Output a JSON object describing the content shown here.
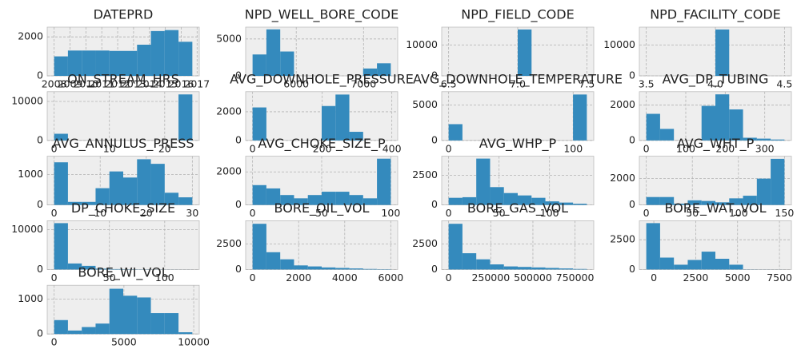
{
  "chart_data": [
    {
      "type": "histogram",
      "title": "DATEPRD",
      "bins": [
        2008,
        2008.87,
        2009.74,
        2010.61,
        2011.48,
        2012.35,
        2013.22,
        2014.09,
        2014.96,
        2015.83,
        2016.7
      ],
      "values": [
        1000,
        1300,
        1300,
        1300,
        1280,
        1280,
        1600,
        2300,
        2350,
        1750
      ],
      "xlim": [
        2007.565,
        2017.135
      ],
      "xticks": [
        2008,
        2009,
        2010,
        2011,
        2012,
        2013,
        2014,
        2015,
        2016,
        2017
      ],
      "ylim": [
        0,
        2500
      ],
      "yticks": [
        0,
        2000
      ],
      "color": "#348ABD",
      "grid": true
    },
    {
      "type": "histogram",
      "title": "NPD_WELL_BORE_CODE",
      "bins": [
        5351,
        5556.4,
        5761.8,
        5967.2,
        6172.6,
        6378,
        6583.4,
        6788.8,
        6994.2,
        7199.6,
        7405
      ],
      "values": [
        2900,
        6300,
        3300,
        0,
        0,
        0,
        0,
        0,
        1000,
        1700
      ],
      "xlim": [
        5248.3,
        7507.7
      ],
      "xticks": [
        6000,
        7000
      ],
      "ylim": [
        0,
        6600
      ],
      "yticks": [
        0,
        5000
      ],
      "color": "#348ABD",
      "grid": true
    },
    {
      "type": "histogram",
      "title": "NPD_FIELD_CODE",
      "bins": [
        6.5,
        6.6,
        6.7,
        6.8,
        6.9,
        7.0,
        7.1,
        7.2,
        7.3,
        7.4,
        7.5
      ],
      "values": [
        0,
        0,
        0,
        0,
        0,
        15000,
        0,
        0,
        0,
        0
      ],
      "xlim": [
        6.45,
        7.55
      ],
      "xticks": [
        6.5,
        {
          "value": 7,
          "label": "7.0"
        },
        7.5
      ],
      "ylim": [
        0,
        15750
      ],
      "yticks": [
        0,
        10000
      ],
      "color": "#348ABD",
      "grid": true
    },
    {
      "type": "histogram",
      "title": "NPD_FACILITY_CODE",
      "bins": [
        3.5,
        3.6,
        3.7,
        3.8,
        3.9,
        4.0,
        4.1,
        4.2,
        4.3,
        4.4,
        4.5
      ],
      "values": [
        0,
        0,
        0,
        0,
        0,
        15000,
        0,
        0,
        0,
        0
      ],
      "xlim": [
        3.45,
        4.55
      ],
      "xticks": [
        3.5,
        {
          "value": 4,
          "label": "4.0"
        },
        4.5
      ],
      "ylim": [
        0,
        15750
      ],
      "yticks": [
        0,
        10000
      ],
      "color": "#348ABD",
      "grid": true
    },
    {
      "type": "histogram",
      "title": "ON_STREAM_HRS",
      "bins": [
        0,
        2.5,
        5,
        7.5,
        10,
        12.5,
        15,
        17.5,
        20,
        22.5,
        25
      ],
      "values": [
        1700,
        0,
        0,
        0,
        0,
        0,
        0,
        0,
        0,
        11800
      ],
      "xlim": [
        -1.25,
        26.25
      ],
      "xticks": [
        0,
        10,
        20
      ],
      "ylim": [
        0,
        12500
      ],
      "yticks": [
        0,
        10000
      ],
      "color": "#348ABD",
      "grid": true
    },
    {
      "type": "histogram",
      "title": "AVG_DOWNHOLE_PRESSURE",
      "bins": [
        0,
        39.7,
        79.4,
        119.1,
        158.8,
        198.5,
        238.2,
        277.9,
        317.6,
        357.3,
        397
      ],
      "values": [
        2300,
        0,
        0,
        0,
        0,
        2400,
        3200,
        600,
        0,
        0
      ],
      "xlim": [
        -19.85,
        416.85
      ],
      "xticks": [
        0,
        200,
        400
      ],
      "ylim": [
        0,
        3400
      ],
      "yticks": [
        0,
        2000
      ],
      "color": "#348ABD",
      "grid": true
    },
    {
      "type": "histogram",
      "title": "AVG_DOWNHOLE_TEMPERATURE",
      "bins": [
        0,
        11.1,
        22.2,
        33.3,
        44.4,
        55.5,
        66.6,
        77.7,
        88.8,
        99.9,
        111
      ],
      "values": [
        2300,
        0,
        0,
        0,
        0,
        0,
        0,
        0,
        0,
        6500
      ],
      "xlim": [
        -5.55,
        116.55
      ],
      "xticks": [
        0,
        100
      ],
      "ylim": [
        0,
        6900
      ],
      "yticks": [
        0,
        5000
      ],
      "color": "#348ABD",
      "grid": true
    },
    {
      "type": "histogram",
      "title": "AVG_DP_TUBING",
      "bins": [
        0,
        35,
        70,
        105,
        140,
        175,
        210,
        245,
        280,
        315,
        350
      ],
      "values": [
        1500,
        650,
        0,
        0,
        1950,
        2600,
        1750,
        150,
        100,
        50
      ],
      "xlim": [
        -17.5,
        367.5
      ],
      "xticks": [
        0,
        100,
        200,
        300
      ],
      "ylim": [
        0,
        2750
      ],
      "yticks": [
        0,
        2000
      ],
      "color": "#348ABD",
      "grid": true
    },
    {
      "type": "histogram",
      "title": "AVG_ANNULUS_PRESS",
      "bins": [
        0,
        3,
        6,
        9,
        12,
        15,
        18,
        21,
        24,
        27,
        30
      ],
      "values": [
        1400,
        100,
        100,
        550,
        1100,
        900,
        1500,
        1350,
        400,
        250
      ],
      "xlim": [
        -1.5,
        31.5
      ],
      "xticks": [
        0,
        10,
        20,
        30
      ],
      "ylim": [
        0,
        1600
      ],
      "yticks": [
        0,
        1000
      ],
      "color": "#348ABD",
      "grid": true
    },
    {
      "type": "histogram",
      "title": "AVG_CHOKE_SIZE_P",
      "bins": [
        0,
        10,
        20,
        30,
        40,
        50,
        60,
        70,
        80,
        90,
        100
      ],
      "values": [
        1200,
        1000,
        600,
        400,
        600,
        800,
        800,
        600,
        400,
        2800
      ],
      "xlim": [
        -5,
        105
      ],
      "xticks": [
        0,
        50,
        100
      ],
      "ylim": [
        0,
        2950
      ],
      "yticks": [
        0,
        2000
      ],
      "color": "#348ABD",
      "grid": true
    },
    {
      "type": "histogram",
      "title": "AVG_WHP_P",
      "bins": [
        0,
        13.7,
        27.4,
        41.1,
        54.8,
        68.5,
        82.2,
        95.9,
        109.6,
        123.3,
        137
      ],
      "values": [
        600,
        650,
        3900,
        1500,
        1000,
        800,
        600,
        300,
        200,
        100
      ],
      "xlim": [
        -6.85,
        143.85
      ],
      "xticks": [
        0,
        50,
        100
      ],
      "ylim": [
        0,
        4100
      ],
      "yticks": [
        0,
        2500
      ],
      "color": "#348ABD",
      "grid": true
    },
    {
      "type": "histogram",
      "title": "AVG_WHT_P",
      "bins": [
        0,
        15,
        30,
        45,
        60,
        75,
        90,
        105,
        120,
        135,
        150
      ],
      "values": [
        600,
        600,
        100,
        350,
        300,
        200,
        500,
        700,
        2000,
        3500
      ],
      "xlim": [
        -7.5,
        157.5
      ],
      "xticks": [
        0,
        50,
        100,
        150
      ],
      "ylim": [
        0,
        3700
      ],
      "yticks": [
        0,
        2000
      ],
      "color": "#348ABD",
      "grid": true
    },
    {
      "type": "histogram",
      "title": "DP_CHOKE_SIZE",
      "bins": [
        0,
        12.5,
        25,
        37.5,
        50,
        62.5,
        75,
        87.5,
        100,
        112.5,
        125
      ],
      "values": [
        11600,
        1500,
        900,
        200,
        100,
        50,
        30,
        20,
        10,
        5
      ],
      "xlim": [
        -6.25,
        131.25
      ],
      "xticks": [
        0,
        50,
        100
      ],
      "ylim": [
        0,
        12200
      ],
      "yticks": [
        0,
        10000
      ],
      "color": "#348ABD",
      "grid": true
    },
    {
      "type": "histogram",
      "title": "BORE_OIL_VOL",
      "bins": [
        0,
        600,
        1200,
        1800,
        2400,
        3000,
        3600,
        4200,
        4800,
        5400,
        6000
      ],
      "values": [
        4500,
        1700,
        1000,
        400,
        300,
        200,
        150,
        100,
        50,
        30
      ],
      "xlim": [
        -300,
        6300
      ],
      "xticks": [
        0,
        2000,
        4000,
        6000
      ],
      "ylim": [
        0,
        4800
      ],
      "yticks": [
        0,
        2500
      ],
      "color": "#348ABD",
      "grid": true
    },
    {
      "type": "histogram",
      "title": "BORE_GAS_VOL",
      "bins": [
        0,
        82000,
        164000,
        246000,
        328000,
        410000,
        492000,
        574000,
        656000,
        738000,
        820000
      ],
      "values": [
        4500,
        1600,
        1000,
        500,
        300,
        250,
        200,
        150,
        100,
        50
      ],
      "xlim": [
        -41000,
        861000
      ],
      "xticks": [
        0,
        250000,
        500000,
        750000
      ],
      "ylim": [
        0,
        4800
      ],
      "yticks": [
        0,
        2500
      ],
      "color": "#348ABD",
      "grid": true
    },
    {
      "type": "histogram",
      "title": "BORE_WAT_VOL",
      "bins": [
        -450,
        375,
        1200,
        2025,
        2850,
        3675,
        4500,
        5325,
        6150,
        6975,
        7800
      ],
      "values": [
        3900,
        1000,
        400,
        800,
        1500,
        900,
        400,
        10,
        5,
        3
      ],
      "xlim": [
        -862.5,
        8212.5
      ],
      "xticks": [
        0,
        2500,
        5000,
        7500
      ],
      "ylim": [
        0,
        4100
      ],
      "yticks": [
        0,
        2500
      ],
      "color": "#348ABD",
      "grid": true
    },
    {
      "type": "histogram",
      "title": "BORE_WI_VOL",
      "bins": [
        0,
        990,
        1980,
        2970,
        3960,
        4950,
        5940,
        6930,
        7920,
        8910,
        9900
      ],
      "values": [
        400,
        100,
        200,
        300,
        1300,
        1100,
        1050,
        600,
        600,
        50
      ],
      "xlim": [
        -495,
        10395
      ],
      "xticks": [
        0,
        5000,
        10000
      ],
      "ylim": [
        0,
        1400
      ],
      "yticks": [
        0,
        1000
      ],
      "color": "#348ABD",
      "grid": true
    }
  ]
}
